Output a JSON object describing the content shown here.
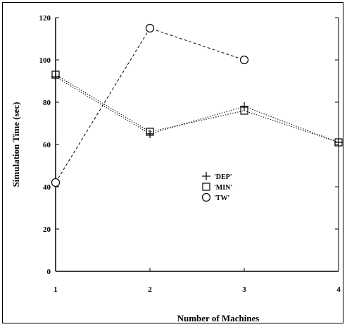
{
  "chart_data": {
    "type": "line",
    "title": "",
    "xlabel": "Number of Machines",
    "ylabel": "Simulation Time (sec)",
    "x": [
      1,
      2,
      3,
      4
    ],
    "x_ticks": [
      "1",
      "2",
      "3",
      "4"
    ],
    "y_ticks": [
      "0",
      "20",
      "40",
      "60",
      "80",
      "100",
      "120"
    ],
    "xlim": [
      1,
      4
    ],
    "ylim": [
      0,
      120
    ],
    "grid": false,
    "legend_position": "center-right",
    "series": [
      {
        "name": "'DEP'",
        "marker": "plus",
        "line": "dotted",
        "values": [
          92,
          65,
          78,
          61
        ]
      },
      {
        "name": "'MIN'",
        "marker": "square",
        "line": "dotted",
        "values": [
          93,
          66,
          76,
          61
        ]
      },
      {
        "name": "'TW'",
        "marker": "circle",
        "line": "dashed",
        "values": [
          42,
          115,
          100,
          null
        ]
      }
    ],
    "colors": {
      "ink": "#000000",
      "background": "#ffffff"
    }
  }
}
